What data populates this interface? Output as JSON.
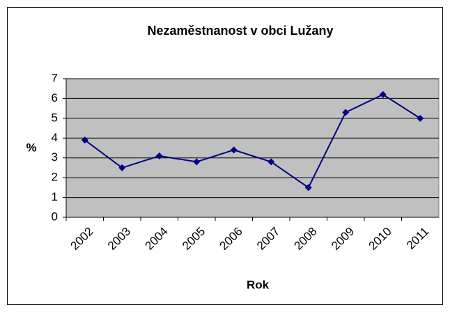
{
  "chart_data": {
    "type": "line",
    "title": "Nezaměstnanost v obci Lužany",
    "x_label": "Rok",
    "y_label": "%",
    "categories": [
      "2002",
      "2003",
      "2004",
      "2005",
      "2006",
      "2007",
      "2008",
      "2009",
      "2010",
      "2011"
    ],
    "series": [
      {
        "name": "Nezaměstnanost",
        "color": "#000080",
        "values": [
          3.9,
          2.5,
          3.1,
          2.8,
          3.4,
          2.8,
          1.5,
          5.3,
          6.2,
          5.0
        ]
      }
    ],
    "ylim": [
      0,
      7
    ],
    "yticks": [
      0,
      1,
      2,
      3,
      4,
      5,
      6,
      7
    ],
    "grid": true,
    "legend": false
  }
}
